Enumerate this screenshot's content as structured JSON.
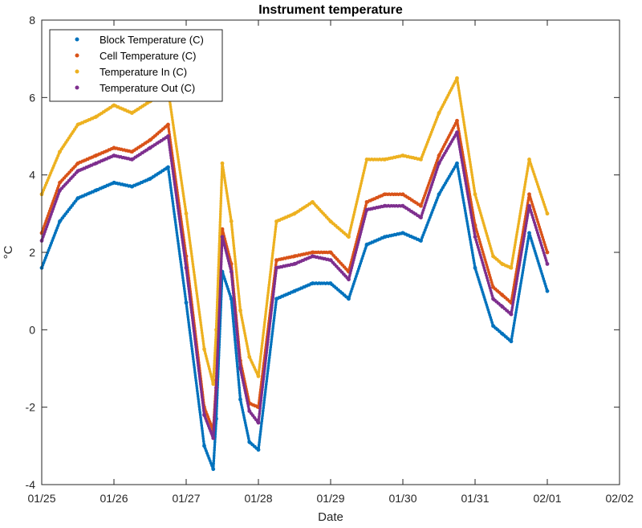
{
  "chart_data": {
    "type": "scatter",
    "title": "Instrument temperature",
    "xlabel": "Date",
    "ylabel": "°C",
    "xlim": [
      "01/25",
      "02/02"
    ],
    "ylim": [
      -4,
      8
    ],
    "x_ticks": [
      "01/25",
      "01/26",
      "01/27",
      "01/28",
      "01/29",
      "01/30",
      "01/31",
      "02/01",
      "02/02"
    ],
    "y_ticks": [
      "-4",
      "-2",
      "0",
      "2",
      "4",
      "6",
      "8"
    ],
    "grid": false,
    "legend_position": "top-left",
    "x": [
      "01/25 00:00",
      "01/25 06:00",
      "01/25 12:00",
      "01/25 18:00",
      "01/26 00:00",
      "01/26 06:00",
      "01/26 12:00",
      "01/26 18:00",
      "01/27 00:00",
      "01/27 06:00",
      "01/27 09:00",
      "01/27 10:00",
      "01/27 12:00",
      "01/27 15:00",
      "01/27 18:00",
      "01/27 21:00",
      "01/28 00:00",
      "01/28 06:00",
      "01/28 12:00",
      "01/28 18:00",
      "01/29 00:00",
      "01/29 06:00",
      "01/29 12:00",
      "01/29 18:00",
      "01/30 00:00",
      "01/30 06:00",
      "01/30 12:00",
      "01/30 18:00",
      "01/31 00:00",
      "01/31 06:00",
      "01/31 09:00",
      "01/31 12:00",
      "01/31 18:00",
      "02/01 00:00"
    ],
    "series": [
      {
        "name": "Block Temperature (C)",
        "color": "#0072bd",
        "values": [
          1.6,
          2.8,
          3.4,
          3.6,
          3.8,
          3.7,
          3.9,
          4.2,
          0.7,
          -3.0,
          -3.6,
          -2.3,
          1.5,
          0.8,
          -1.8,
          -2.9,
          -3.1,
          0.8,
          1.0,
          1.2,
          1.2,
          0.8,
          2.2,
          2.4,
          2.5,
          2.3,
          3.5,
          4.3,
          1.6,
          0.1,
          -0.1,
          -0.3,
          2.5,
          1.0
        ]
      },
      {
        "name": "Cell Temperature (C)",
        "color": "#d95319",
        "values": [
          2.5,
          3.8,
          4.3,
          4.5,
          4.7,
          4.6,
          4.9,
          5.3,
          1.9,
          -2.0,
          -2.6,
          -1.3,
          2.6,
          1.7,
          -0.8,
          -1.9,
          -2.0,
          1.8,
          1.9,
          2.0,
          2.0,
          1.5,
          3.3,
          3.5,
          3.5,
          3.2,
          4.5,
          5.4,
          2.7,
          1.1,
          0.9,
          0.7,
          3.5,
          2.0
        ]
      },
      {
        "name": "Temperature In (C)",
        "color": "#edb120",
        "values": [
          3.5,
          4.6,
          5.3,
          5.5,
          5.8,
          5.6,
          5.9,
          6.2,
          3.0,
          -0.5,
          -1.4,
          0.0,
          4.3,
          2.8,
          0.5,
          -0.7,
          -1.2,
          2.8,
          3.0,
          3.3,
          2.8,
          2.4,
          4.4,
          4.4,
          4.5,
          4.4,
          5.6,
          6.5,
          3.5,
          1.9,
          1.7,
          1.6,
          4.4,
          3.0
        ]
      },
      {
        "name": "Temperature Out (C)",
        "color": "#7e2f8e",
        "values": [
          2.3,
          3.6,
          4.1,
          4.3,
          4.5,
          4.4,
          4.7,
          5.0,
          1.6,
          -2.2,
          -2.8,
          -1.5,
          2.4,
          1.5,
          -1.0,
          -2.1,
          -2.4,
          1.6,
          1.7,
          1.9,
          1.8,
          1.3,
          3.1,
          3.2,
          3.2,
          2.9,
          4.3,
          5.1,
          2.4,
          0.8,
          0.6,
          0.4,
          3.2,
          1.7
        ]
      }
    ]
  }
}
